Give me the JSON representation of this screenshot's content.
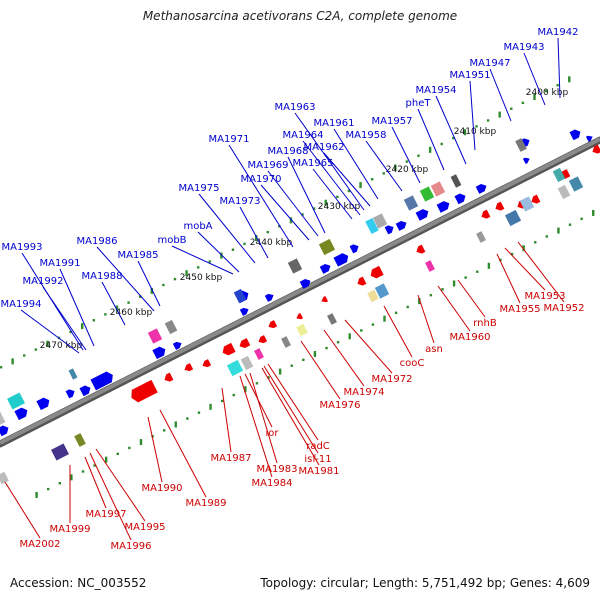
{
  "title": "Methanosarcina acetivorans C2A, complete genome",
  "footer": {
    "accession": "Accession: NC_003552",
    "summary": "Topology: circular; Length: 5,751,492 bp; Genes: 4,609"
  },
  "colors": {
    "backbone": "#8a8a8a",
    "tick_major": "#2e8b2e",
    "tick_minor": "#2e8b2e",
    "forward_label": "#0000cc",
    "reverse_label": "#cc0000",
    "forward_feature": "#0000ee",
    "reverse_feature": "#ee0000"
  },
  "kbp_labels": [
    "2400 kbp",
    "2410 kbp",
    "2420 kbp",
    "2430 kbp",
    "2440 kbp",
    "2450 kbp",
    "2460 kbp",
    "2470 kbp"
  ],
  "forward_genes": [
    "MA1942",
    "MA1943",
    "MA1947",
    "MA1951",
    "MA1954",
    "pheT",
    "MA1957",
    "MA1958",
    "MA1961",
    "MA1962",
    "MA1963",
    "MA1964",
    "MA1965",
    "MA1968",
    "MA1969",
    "MA1970",
    "MA1971",
    "MA1973",
    "MA1975",
    "mobA",
    "mobB",
    "MA1985",
    "MA1986",
    "MA1988",
    "MA1991",
    "MA1992",
    "MA1993",
    "MA1994"
  ],
  "reverse_genes": [
    "MA1952",
    "MA1953",
    "MA1955",
    "rnhB",
    "MA1960",
    "asn",
    "cooC",
    "MA1972",
    "MA1974",
    "MA1976",
    "radC",
    "isf-11",
    "MA1981",
    "MA1983",
    "MA1984",
    "ior",
    "MA1987",
    "MA1989",
    "MA1990",
    "MA1995",
    "MA1996",
    "MA1997",
    "MA1999",
    "MA2002"
  ]
}
